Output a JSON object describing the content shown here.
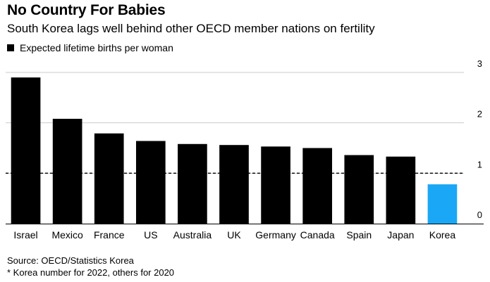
{
  "header": {
    "title": "No Country For Babies",
    "subtitle": "South Korea lags well behind other OECD member nations on fertility"
  },
  "legend": {
    "label": "Expected lifetime births per woman"
  },
  "footer": {
    "source": "Source: OECD/Statistics Korea",
    "note": "* Korea number for 2022, others for 2020"
  },
  "chart_data": {
    "type": "bar",
    "title": "No Country For Babies",
    "subtitle": "South Korea lags well behind other OECD member nations on fertility",
    "categories": [
      "Israel",
      "Mexico",
      "France",
      "US",
      "Australia",
      "UK",
      "Germany",
      "Canada",
      "Spain",
      "Japan",
      "Korea"
    ],
    "values": [
      2.9,
      2.08,
      1.79,
      1.64,
      1.58,
      1.56,
      1.53,
      1.5,
      1.36,
      1.33,
      0.78
    ],
    "series": [
      {
        "name": "Expected lifetime births per woman",
        "values": [
          2.9,
          2.08,
          1.79,
          1.64,
          1.58,
          1.56,
          1.53,
          1.5,
          1.36,
          1.33,
          0.78
        ]
      }
    ],
    "ylim": [
      0,
      3
    ],
    "yticks": [
      0,
      1,
      2,
      3
    ],
    "reference_line": 1.0,
    "reference_line_style": "dashed",
    "grid": true,
    "legend_position": "top-left",
    "colors": {
      "default": "#000000",
      "highlight": "#1aa7f5",
      "grid": "#cccccc"
    },
    "highlight_category": "Korea",
    "xlabel": "",
    "ylabel": ""
  }
}
